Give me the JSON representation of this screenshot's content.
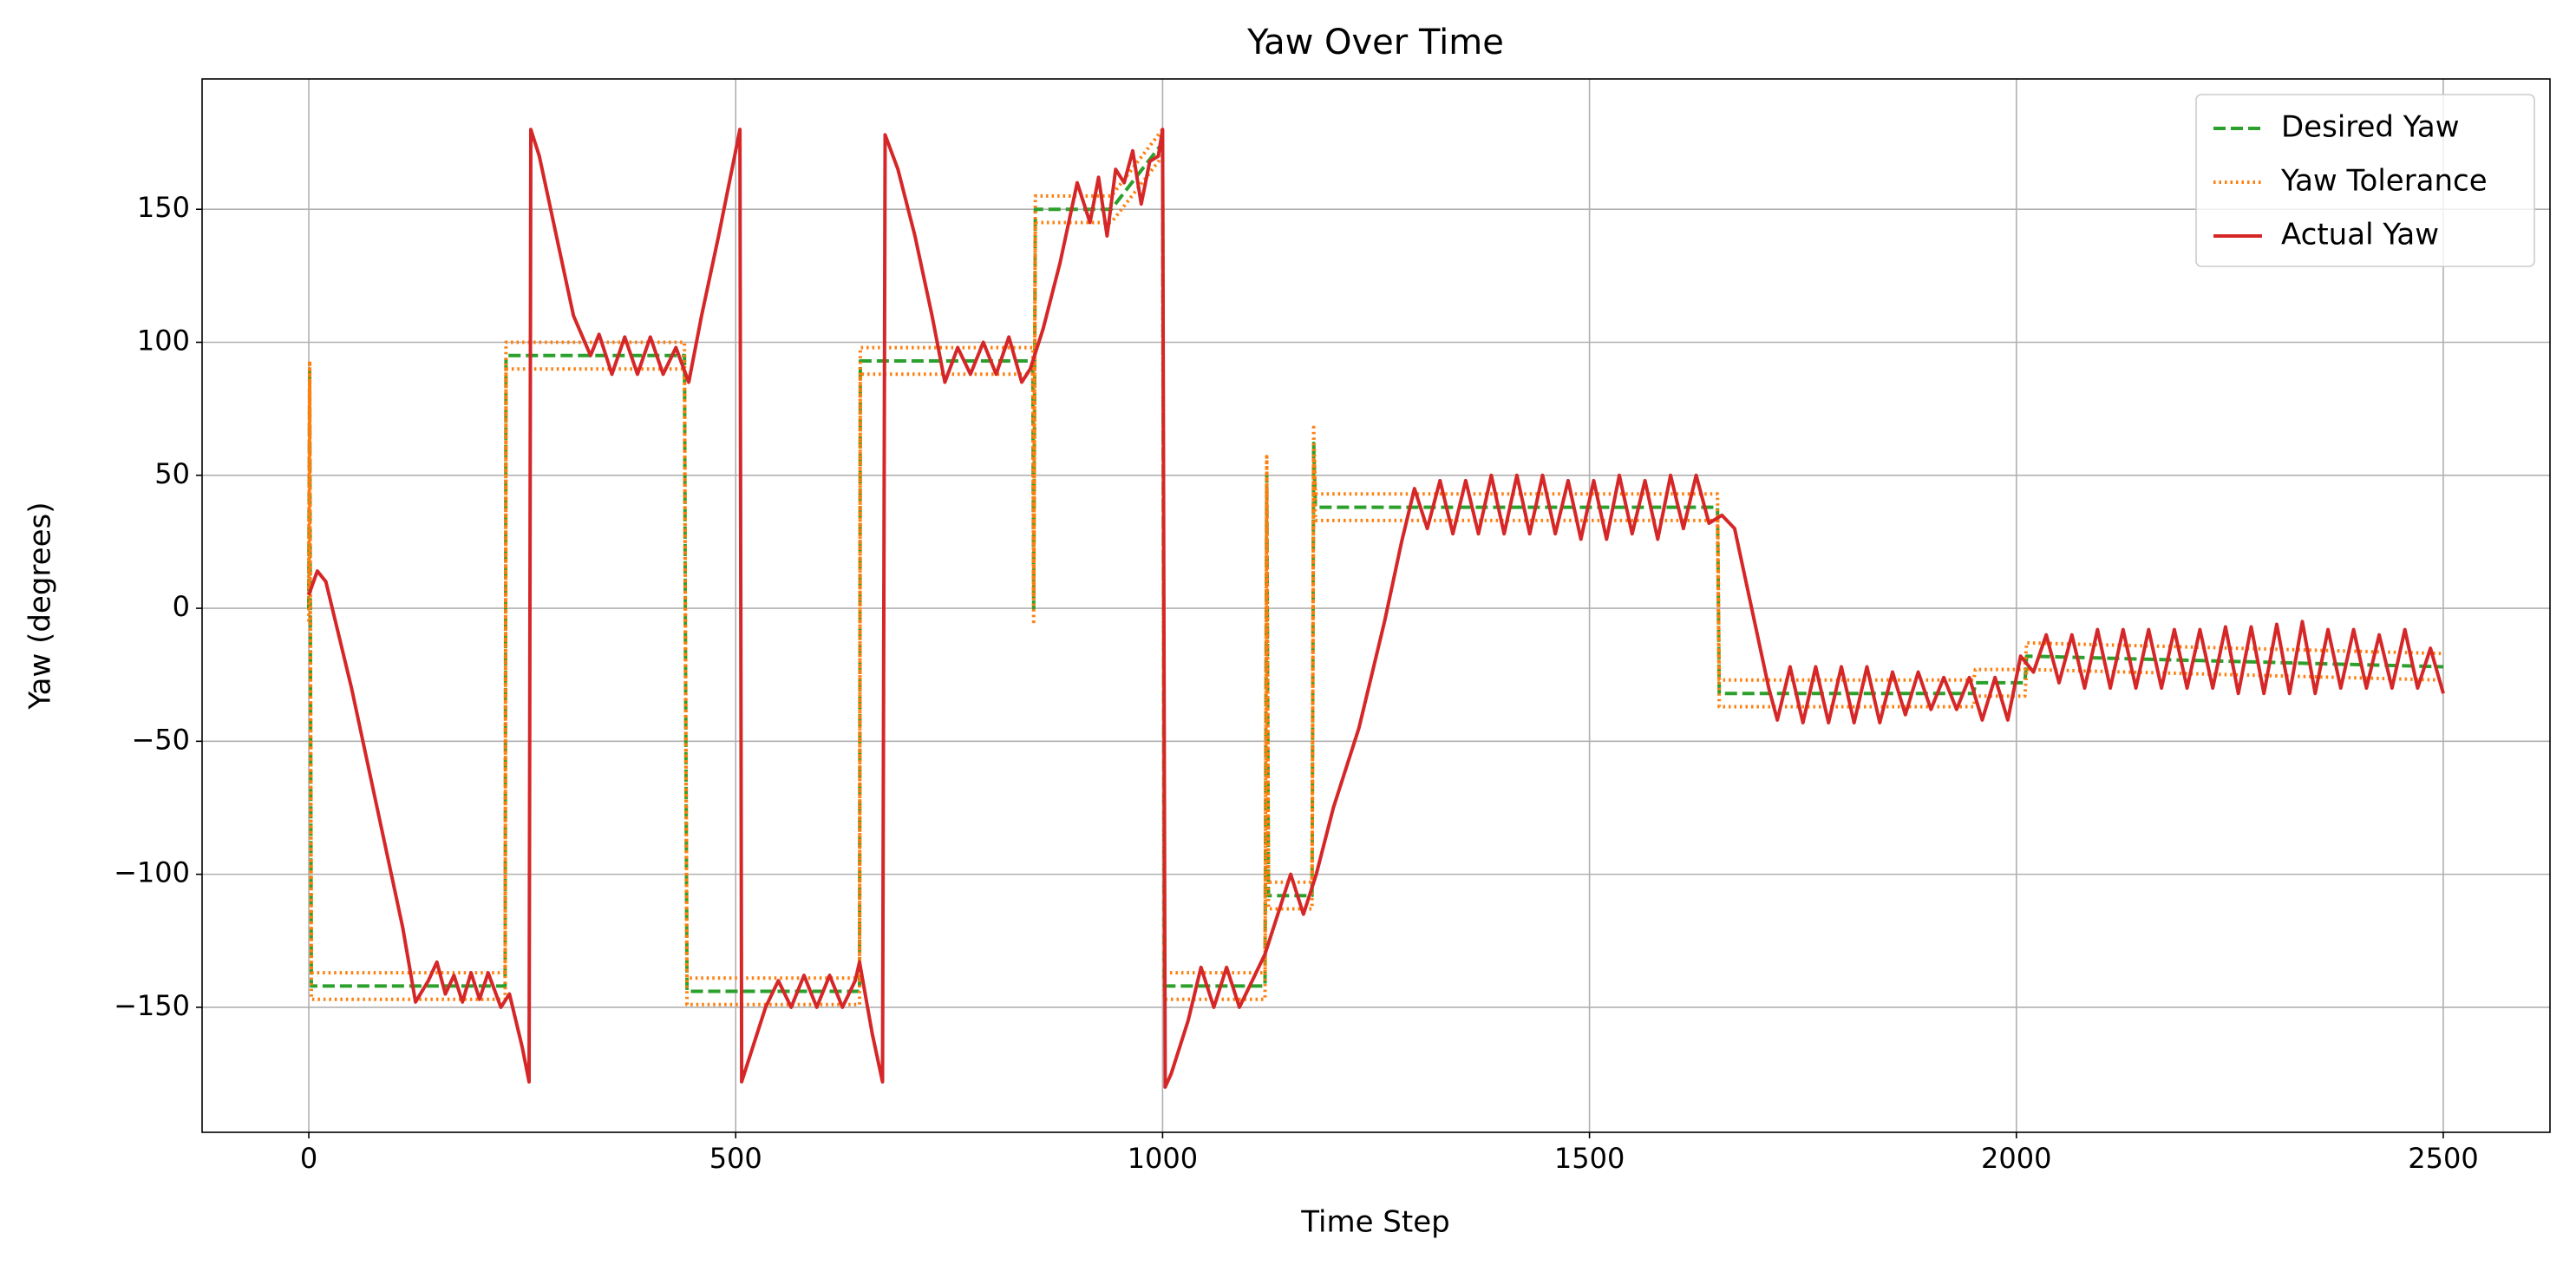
{
  "chart_data": {
    "type": "line",
    "title": "Yaw Over Time",
    "xlabel": "Time Step",
    "ylabel": "Yaw (degrees)",
    "xlim": [
      -125,
      2625
    ],
    "ylim": [
      -197,
      199
    ],
    "xticks": [
      0,
      500,
      1000,
      1500,
      2000,
      2500
    ],
    "yticks": [
      {
        "value": -150,
        "label": "−150"
      },
      {
        "value": -100,
        "label": "−100"
      },
      {
        "value": -50,
        "label": "−50"
      },
      0,
      50,
      100,
      150
    ],
    "grid": true,
    "legend": "upper right",
    "series": [
      {
        "name": "Desired Yaw",
        "color": "#2ca02c",
        "style": "dashed",
        "x": [
          0,
          1,
          3,
          230,
          231,
          440,
          441,
          443,
          645,
          646,
          848,
          849,
          851,
          940,
          1000,
          1002,
          1120,
          1122,
          1124,
          1175,
          1177,
          1179,
          1650,
          1652,
          1950,
          1952,
          2010,
          2012,
          2500
        ],
        "values": [
          0,
          90,
          -142,
          -142,
          95,
          95,
          0,
          -144,
          -144,
          93,
          93,
          0,
          150,
          150,
          175,
          -142,
          -142,
          50,
          -108,
          -108,
          62,
          38,
          38,
          -32,
          -32,
          -28,
          -28,
          -18,
          -22
        ]
      },
      {
        "name": "Yaw Tolerance",
        "color": "#ff7f0e",
        "style": "dotted",
        "x": [
          0,
          1,
          3,
          230,
          231,
          440,
          441,
          443,
          645,
          646,
          848,
          849,
          851,
          940,
          1000,
          1002,
          1120,
          1122,
          1124,
          1175,
          1177,
          1179,
          1650,
          1652,
          1950,
          1952,
          2010,
          2012,
          2500
        ],
        "upper": [
          5,
          93,
          -137,
          -137,
          100,
          100,
          5,
          -139,
          -139,
          98,
          98,
          5,
          155,
          155,
          180,
          -137,
          -137,
          57,
          -103,
          -103,
          68,
          43,
          43,
          -27,
          -27,
          -23,
          -23,
          -13,
          -17
        ],
        "lower": [
          -5,
          85,
          -147,
          -147,
          90,
          90,
          -5,
          -149,
          -149,
          88,
          88,
          -5,
          145,
          145,
          170,
          -147,
          -147,
          45,
          -113,
          -113,
          57,
          33,
          33,
          -37,
          -37,
          -33,
          -33,
          -23,
          -27
        ]
      },
      {
        "name": "Actual Yaw",
        "color": "#d62728",
        "style": "solid",
        "x": [
          0,
          10,
          20,
          50,
          80,
          110,
          125,
          140,
          150,
          160,
          170,
          180,
          190,
          200,
          210,
          225,
          235,
          250,
          258,
          260,
          270,
          290,
          310,
          330,
          340,
          355,
          370,
          385,
          400,
          415,
          430,
          445,
          460,
          480,
          500,
          505,
          507,
          520,
          535,
          550,
          565,
          580,
          595,
          610,
          625,
          640,
          645,
          660,
          672,
          675,
          690,
          710,
          730,
          745,
          760,
          775,
          790,
          805,
          820,
          835,
          845,
          860,
          880,
          900,
          915,
          925,
          935,
          945,
          955,
          965,
          975,
          985,
          995,
          1000,
          1003,
          1010,
          1030,
          1045,
          1060,
          1075,
          1090,
          1105,
          1120,
          1135,
          1150,
          1165,
          1180,
          1200,
          1230,
          1260,
          1280,
          1295,
          1310,
          1325,
          1340,
          1355,
          1370,
          1385,
          1400,
          1415,
          1430,
          1445,
          1460,
          1475,
          1490,
          1505,
          1520,
          1535,
          1550,
          1565,
          1580,
          1595,
          1610,
          1625,
          1640,
          1655,
          1670,
          1690,
          1710,
          1720,
          1735,
          1750,
          1765,
          1780,
          1795,
          1810,
          1825,
          1840,
          1855,
          1870,
          1885,
          1900,
          1915,
          1930,
          1945,
          1960,
          1975,
          1990,
          2005,
          2020,
          2035,
          2050,
          2065,
          2080,
          2095,
          2110,
          2125,
          2140,
          2155,
          2170,
          2185,
          2200,
          2215,
          2230,
          2245,
          2260,
          2275,
          2290,
          2305,
          2320,
          2335,
          2350,
          2365,
          2380,
          2395,
          2410,
          2425,
          2440,
          2455,
          2470,
          2485,
          2500
        ],
        "values": [
          5,
          14,
          10,
          -30,
          -75,
          -120,
          -148,
          -140,
          -133,
          -145,
          -138,
          -148,
          -137,
          -147,
          -137,
          -150,
          -145,
          -165,
          -178,
          180,
          170,
          140,
          110,
          95,
          103,
          88,
          102,
          88,
          102,
          88,
          98,
          85,
          110,
          140,
          172,
          180,
          -178,
          -165,
          -150,
          -140,
          -150,
          -138,
          -150,
          -138,
          -150,
          -140,
          -133,
          -160,
          -178,
          178,
          165,
          140,
          110,
          85,
          98,
          88,
          100,
          88,
          102,
          85,
          90,
          105,
          130,
          160,
          145,
          162,
          140,
          165,
          160,
          172,
          152,
          168,
          170,
          180,
          -180,
          -175,
          -155,
          -135,
          -150,
          -135,
          -150,
          -140,
          -130,
          -115,
          -100,
          -115,
          -100,
          -75,
          -45,
          -5,
          25,
          45,
          30,
          48,
          28,
          48,
          28,
          50,
          28,
          50,
          28,
          50,
          28,
          48,
          26,
          48,
          26,
          50,
          28,
          48,
          26,
          50,
          30,
          50,
          32,
          35,
          30,
          0,
          -30,
          -42,
          -22,
          -43,
          -22,
          -43,
          -22,
          -43,
          -22,
          -43,
          -24,
          -40,
          -24,
          -38,
          -26,
          -38,
          -26,
          -42,
          -26,
          -42,
          -18,
          -24,
          -10,
          -28,
          -10,
          -30,
          -8,
          -30,
          -8,
          -30,
          -8,
          -30,
          -8,
          -30,
          -8,
          -30,
          -7,
          -32,
          -7,
          -32,
          -6,
          -32,
          -5,
          -32,
          -8,
          -30,
          -8,
          -30,
          -10,
          -30,
          -8,
          -30,
          -15,
          -32
        ]
      }
    ]
  }
}
